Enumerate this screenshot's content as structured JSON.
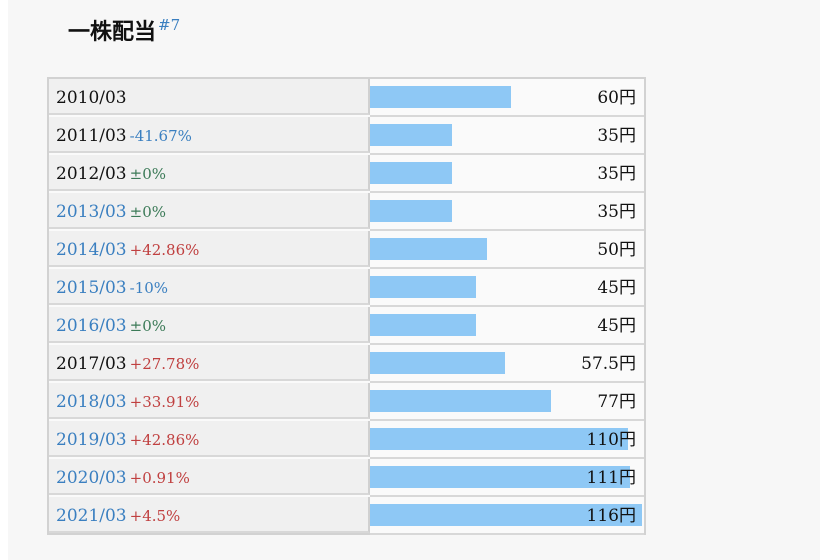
{
  "title": "一株配当",
  "footnote": "#7",
  "colors": {
    "bar": "#8ec8f5",
    "year_link": "#3a7fc0",
    "increase": "#c04040",
    "decrease": "#3a7fc0",
    "flat": "#3b7a57"
  },
  "chart_data": {
    "type": "bar",
    "orientation": "horizontal",
    "xlim": [
      0,
      116
    ],
    "unit": "円",
    "rows": [
      {
        "year": "2010/03",
        "year_link": false,
        "change": "",
        "change_type": "none",
        "value": 60,
        "value_label": "60円"
      },
      {
        "year": "2011/03",
        "year_link": false,
        "change": "-41.67%",
        "change_type": "decrease",
        "value": 35,
        "value_label": "35円"
      },
      {
        "year": "2012/03",
        "year_link": false,
        "change": "±0%",
        "change_type": "flat",
        "value": 35,
        "value_label": "35円"
      },
      {
        "year": "2013/03",
        "year_link": true,
        "change": "±0%",
        "change_type": "flat",
        "value": 35,
        "value_label": "35円"
      },
      {
        "year": "2014/03",
        "year_link": true,
        "change": "+42.86%",
        "change_type": "increase",
        "value": 50,
        "value_label": "50円"
      },
      {
        "year": "2015/03",
        "year_link": true,
        "change": "-10%",
        "change_type": "decrease",
        "value": 45,
        "value_label": "45円"
      },
      {
        "year": "2016/03",
        "year_link": true,
        "change": "±0%",
        "change_type": "flat",
        "value": 45,
        "value_label": "45円"
      },
      {
        "year": "2017/03",
        "year_link": false,
        "change": "+27.78%",
        "change_type": "increase",
        "value": 57.5,
        "value_label": "57.5円"
      },
      {
        "year": "2018/03",
        "year_link": true,
        "change": "+33.91%",
        "change_type": "increase",
        "value": 77,
        "value_label": "77円"
      },
      {
        "year": "2019/03",
        "year_link": true,
        "change": "+42.86%",
        "change_type": "increase",
        "value": 110,
        "value_label": "110円"
      },
      {
        "year": "2020/03",
        "year_link": true,
        "change": "+0.91%",
        "change_type": "increase",
        "value": 111,
        "value_label": "111円"
      },
      {
        "year": "2021/03",
        "year_link": true,
        "change": "+4.5%",
        "change_type": "increase",
        "value": 116,
        "value_label": "116円"
      }
    ]
  }
}
